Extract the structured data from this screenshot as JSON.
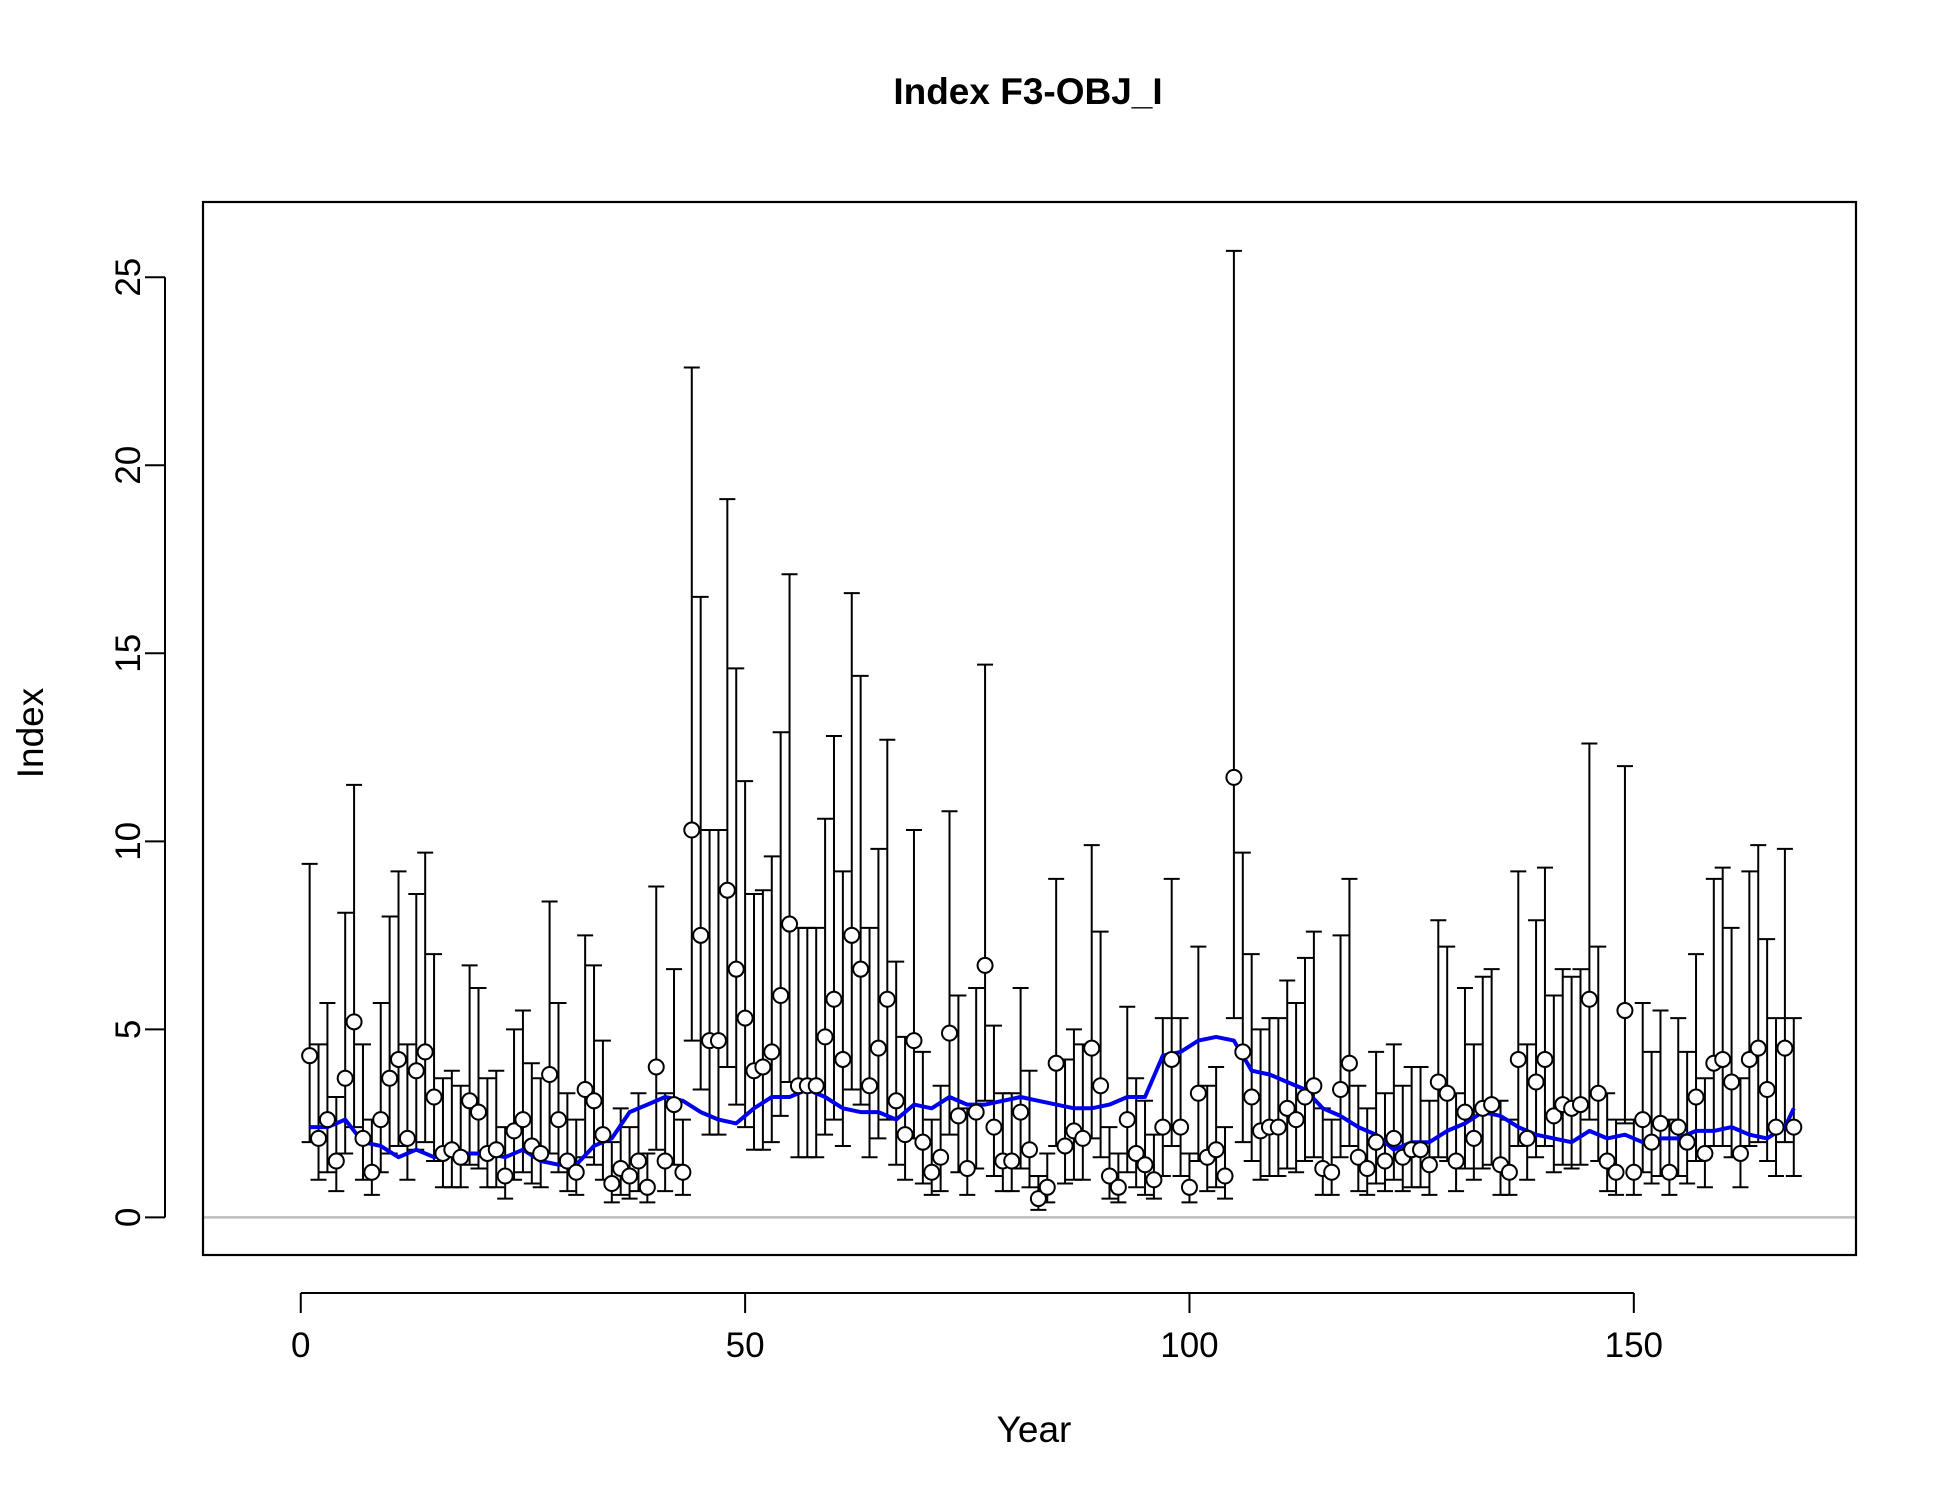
{
  "chart_data": {
    "type": "scatter",
    "title": "Index F3-OBJ_I",
    "xlabel": "Year",
    "ylabel": "Index",
    "xlim": [
      -11,
      175
    ],
    "ylim": [
      -1,
      27
    ],
    "x_ticks": [
      0,
      50,
      100,
      150
    ],
    "x_tick_labels": [
      "0",
      "50",
      "100",
      "150"
    ],
    "y_ticks": [
      0,
      5,
      10,
      15,
      20,
      25
    ],
    "y_tick_labels": [
      "0",
      "5",
      "10",
      "15",
      "20",
      "25"
    ],
    "reference_line": {
      "y": 0,
      "color": "#bebebe"
    },
    "smoother_color": "#0000ee",
    "series": [
      {
        "x": [
          1,
          2,
          3,
          4,
          5,
          6,
          7,
          8,
          9,
          10,
          11,
          12,
          13,
          14,
          15,
          16,
          17,
          18,
          19,
          20,
          21,
          22,
          23,
          24,
          25,
          26,
          27,
          28,
          29,
          30,
          31,
          32,
          33,
          34,
          35,
          36,
          37,
          38,
          39,
          40,
          41,
          42,
          43,
          44,
          45,
          46,
          47,
          48,
          49,
          50,
          51,
          52,
          53,
          54,
          55,
          56,
          57,
          58,
          59,
          60,
          61,
          62,
          63,
          64,
          65,
          66,
          67,
          68,
          69,
          70,
          71,
          72,
          73,
          74,
          75,
          76,
          77,
          78,
          79,
          80,
          81,
          82,
          83,
          84,
          85,
          86,
          87,
          88,
          89,
          90,
          91,
          92,
          93,
          94,
          95,
          96,
          97,
          98,
          99,
          100,
          101,
          102,
          103,
          104,
          105,
          106,
          107,
          108,
          109,
          110,
          111,
          112,
          113,
          114,
          115,
          116,
          117,
          118,
          119,
          120,
          121,
          122,
          123,
          124,
          125,
          126,
          127,
          128,
          129,
          130,
          131,
          132,
          133,
          134,
          135,
          136,
          137,
          138,
          139,
          140,
          141,
          142,
          143,
          144,
          145,
          146,
          147,
          148,
          149,
          150,
          151,
          152,
          153,
          154,
          155,
          156,
          157,
          158,
          159,
          160,
          161,
          162,
          163,
          164,
          165,
          166,
          167,
          168
        ],
        "y": [
          4.3,
          2.1,
          2.6,
          1.5,
          3.7,
          5.2,
          2.1,
          1.2,
          2.6,
          3.7,
          4.2,
          2.1,
          3.9,
          4.4,
          3.2,
          1.7,
          1.8,
          1.6,
          3.1,
          2.8,
          1.7,
          1.8,
          1.1,
          2.3,
          2.6,
          1.9,
          1.7,
          3.8,
          2.6,
          1.5,
          1.2,
          3.4,
          3.1,
          2.2,
          0.9,
          1.3,
          1.1,
          1.5,
          0.8,
          4.0,
          1.5,
          3.0,
          1.2,
          10.3,
          7.5,
          4.7,
          4.7,
          8.7,
          6.6,
          5.3,
          3.9,
          4.0,
          4.4,
          5.9,
          7.8,
          3.5,
          3.5,
          3.5,
          4.8,
          5.8,
          4.2,
          7.5,
          6.6,
          3.5,
          4.5,
          5.8,
          3.1,
          2.2,
          4.7,
          2.0,
          1.2,
          1.6,
          4.9,
          2.7,
          1.3,
          2.8,
          6.7,
          2.4,
          1.5,
          1.5,
          2.8,
          1.8,
          0.5,
          0.8,
          4.1,
          1.9,
          2.3,
          2.1,
          4.5,
          3.5,
          1.1,
          0.8,
          2.6,
          1.7,
          1.4,
          1.0,
          2.4,
          4.2,
          2.4,
          0.8,
          3.3,
          1.6,
          1.8,
          1.1,
          11.7,
          4.4,
          3.2,
          2.3,
          2.4,
          2.4,
          2.9,
          2.6,
          3.2,
          3.5,
          1.3,
          1.2,
          3.4,
          4.1,
          1.6,
          1.3,
          2.0,
          1.5,
          2.1,
          1.6,
          1.8,
          1.8,
          1.4,
          3.6,
          3.3,
          1.5,
          2.8,
          2.1,
          2.9,
          3.0,
          1.4,
          1.2,
          4.2,
          2.1,
          3.6,
          4.2,
          2.7,
          3.0,
          2.9,
          3.0,
          5.8,
          3.3,
          1.5,
          1.2,
          5.5,
          1.2,
          2.6,
          2.0,
          2.5,
          1.2,
          2.4,
          2.0,
          3.2,
          1.7,
          4.1,
          4.2,
          3.6,
          1.7,
          4.2,
          4.5,
          3.4,
          2.4,
          4.5,
          2.4
        ],
        "lower": [
          2.0,
          1.0,
          1.2,
          0.7,
          1.7,
          2.4,
          1.0,
          0.6,
          1.2,
          1.7,
          1.9,
          1.0,
          1.8,
          2.0,
          1.5,
          0.8,
          0.8,
          0.8,
          1.4,
          1.3,
          0.8,
          0.8,
          0.5,
          1.0,
          1.2,
          0.9,
          0.8,
          1.7,
          1.2,
          0.7,
          0.6,
          1.6,
          1.4,
          1.0,
          0.4,
          0.6,
          0.5,
          0.7,
          0.4,
          1.8,
          0.7,
          1.4,
          0.6,
          4.7,
          3.4,
          2.2,
          2.2,
          4.0,
          3.0,
          2.4,
          1.8,
          1.8,
          2.0,
          2.7,
          3.6,
          1.6,
          1.6,
          1.6,
          2.2,
          2.6,
          1.9,
          3.4,
          3.0,
          1.6,
          2.1,
          2.6,
          1.4,
          1.0,
          2.1,
          0.9,
          0.6,
          0.7,
          2.2,
          1.2,
          0.6,
          1.3,
          3.1,
          1.1,
          0.7,
          0.7,
          1.3,
          0.8,
          0.2,
          0.4,
          1.9,
          0.9,
          1.0,
          1.0,
          2.1,
          1.6,
          0.5,
          0.4,
          1.2,
          0.8,
          0.6,
          0.5,
          1.1,
          1.9,
          1.1,
          0.4,
          1.5,
          0.7,
          0.8,
          0.5,
          5.3,
          2.0,
          1.5,
          1.0,
          1.1,
          1.1,
          1.3,
          1.2,
          1.5,
          1.6,
          0.6,
          0.6,
          1.6,
          1.9,
          0.7,
          0.6,
          0.9,
          0.7,
          1.0,
          0.7,
          0.8,
          0.8,
          0.6,
          1.6,
          1.5,
          0.7,
          1.3,
          1.0,
          1.3,
          1.4,
          0.6,
          0.6,
          1.9,
          1.0,
          1.6,
          1.9,
          1.2,
          1.4,
          1.3,
          1.4,
          2.6,
          1.5,
          0.7,
          0.6,
          2.5,
          0.6,
          1.2,
          0.9,
          1.1,
          0.6,
          1.1,
          0.9,
          1.5,
          0.8,
          1.9,
          1.9,
          1.6,
          0.8,
          1.9,
          2.0,
          1.5,
          1.1,
          2.0,
          1.1
        ],
        "upper": [
          9.4,
          4.6,
          5.7,
          3.2,
          8.1,
          11.5,
          4.6,
          2.6,
          5.7,
          8.0,
          9.2,
          4.6,
          8.6,
          9.7,
          7.0,
          3.7,
          3.9,
          3.5,
          6.7,
          6.1,
          3.7,
          3.9,
          2.4,
          5.0,
          5.5,
          4.1,
          3.7,
          8.4,
          5.7,
          3.3,
          2.6,
          7.5,
          6.7,
          4.7,
          2.0,
          2.9,
          2.4,
          3.3,
          1.7,
          8.8,
          3.3,
          6.6,
          2.6,
          22.6,
          16.5,
          10.3,
          10.3,
          19.1,
          14.6,
          11.6,
          8.6,
          8.7,
          9.6,
          12.9,
          17.1,
          7.7,
          7.7,
          7.7,
          10.6,
          12.8,
          9.2,
          16.6,
          14.4,
          7.7,
          9.8,
          12.7,
          6.8,
          4.8,
          10.3,
          4.4,
          2.6,
          3.5,
          10.8,
          5.9,
          2.9,
          6.1,
          14.7,
          5.1,
          3.3,
          3.3,
          6.1,
          3.9,
          1.1,
          1.7,
          9.0,
          4.2,
          5.0,
          4.6,
          9.9,
          7.6,
          2.4,
          1.7,
          5.6,
          3.7,
          3.1,
          2.2,
          5.3,
          9.0,
          5.3,
          1.7,
          7.2,
          3.5,
          4.0,
          2.4,
          25.7,
          9.7,
          7.0,
          5.0,
          5.3,
          5.3,
          6.3,
          5.7,
          6.9,
          7.6,
          2.9,
          2.6,
          7.5,
          9.0,
          3.5,
          2.9,
          4.4,
          3.3,
          4.6,
          3.5,
          4.0,
          4.0,
          3.1,
          7.9,
          7.2,
          3.3,
          6.1,
          4.6,
          6.4,
          6.6,
          3.1,
          2.6,
          9.2,
          4.6,
          7.9,
          9.3,
          5.9,
          6.6,
          6.4,
          6.6,
          12.6,
          7.2,
          3.3,
          2.6,
          12.0,
          2.6,
          5.7,
          4.4,
          5.5,
          2.6,
          5.3,
          4.4,
          7.0,
          3.7,
          9.0,
          9.3,
          7.7,
          3.7,
          9.2,
          9.9,
          7.4,
          5.3,
          9.8,
          5.3
        ]
      },
      {
        "x": [
          1,
          3,
          5,
          7,
          9,
          11,
          13,
          15,
          17,
          19,
          21,
          23,
          25,
          27,
          29,
          31,
          33,
          35,
          37,
          39,
          41,
          43,
          45,
          47,
          49,
          51,
          53,
          55,
          57,
          59,
          61,
          63,
          65,
          67,
          69,
          71,
          73,
          75,
          77,
          79,
          81,
          83,
          85,
          87,
          89,
          91,
          93,
          95,
          97,
          99,
          101,
          103,
          105,
          107,
          109,
          111,
          113,
          115,
          117,
          119,
          121,
          123,
          125,
          127,
          129,
          131,
          133,
          135,
          137,
          139,
          141,
          143,
          145,
          147,
          149,
          151,
          153,
          155,
          157,
          159,
          161,
          163,
          165,
          167,
          168
        ],
        "y": [
          2.4,
          2.4,
          2.6,
          2.0,
          1.9,
          1.6,
          1.8,
          1.6,
          1.7,
          1.7,
          1.7,
          1.6,
          1.8,
          1.5,
          1.4,
          1.4,
          1.9,
          2.1,
          2.8,
          3.0,
          3.2,
          3.1,
          2.8,
          2.6,
          2.5,
          2.9,
          3.2,
          3.2,
          3.4,
          3.2,
          2.9,
          2.8,
          2.8,
          2.6,
          3.0,
          2.9,
          3.2,
          3.0,
          3.0,
          3.1,
          3.2,
          3.1,
          3.0,
          2.9,
          2.9,
          3.0,
          3.2,
          3.2,
          4.3,
          4.4,
          4.7,
          4.8,
          4.7,
          3.9,
          3.8,
          3.6,
          3.4,
          2.9,
          2.7,
          2.4,
          2.2,
          1.8,
          2.0,
          2.0,
          2.3,
          2.5,
          2.8,
          2.7,
          2.4,
          2.2,
          2.1,
          2.0,
          2.3,
          2.1,
          2.2,
          2.0,
          2.1,
          2.1,
          2.3,
          2.3,
          2.4,
          2.2,
          2.1,
          2.4,
          2.9
        ]
      }
    ]
  }
}
